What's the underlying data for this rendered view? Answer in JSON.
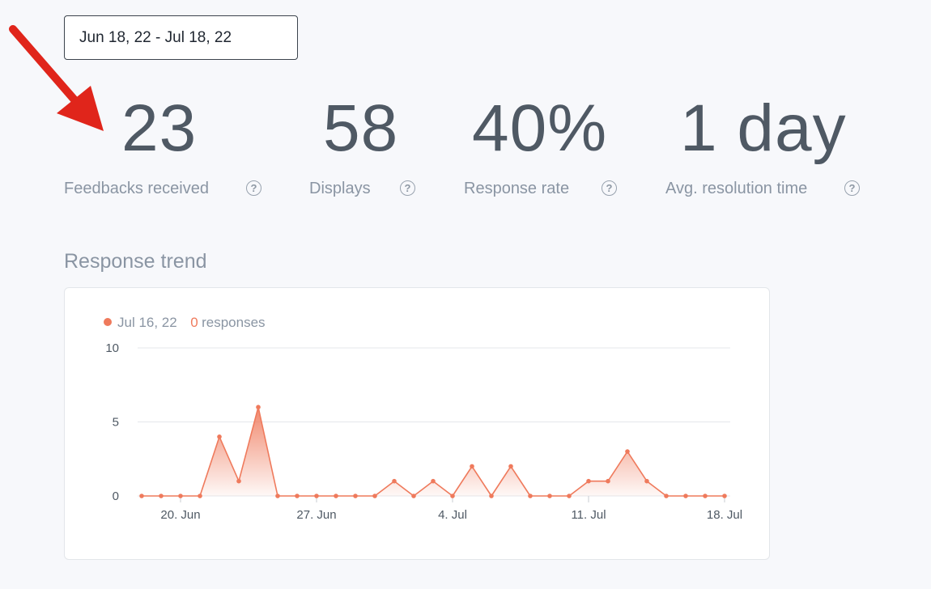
{
  "date_range": {
    "value": "Jun 18, 22 - Jul 18, 22"
  },
  "stats": [
    {
      "value": "23",
      "label": "Feedbacks received"
    },
    {
      "value": "58",
      "label": "Displays"
    },
    {
      "value": "40%",
      "label": "Response rate"
    },
    {
      "value": "1 day",
      "label": "Avg. resolution time"
    }
  ],
  "help_glyph": "?",
  "response_trend": {
    "title": "Response trend",
    "tooltip": {
      "date": "Jul 16, 22",
      "count": "0",
      "unit": " responses"
    }
  },
  "colors": {
    "accent": "#ef7a5c",
    "arrow": "#e0251b",
    "text_dark": "#4f5964",
    "text_muted": "#8a95a3"
  },
  "chart_data": {
    "type": "area",
    "x": [
      "Jun 18",
      "Jun 19",
      "Jun 20",
      "Jun 21",
      "Jun 22",
      "Jun 23",
      "Jun 24",
      "Jun 25",
      "Jun 26",
      "Jun 27",
      "Jun 28",
      "Jun 29",
      "Jun 30",
      "Jul 1",
      "Jul 2",
      "Jul 3",
      "Jul 4",
      "Jul 5",
      "Jul 6",
      "Jul 7",
      "Jul 8",
      "Jul 9",
      "Jul 10",
      "Jul 11",
      "Jul 12",
      "Jul 13",
      "Jul 14",
      "Jul 15",
      "Jul 16",
      "Jul 17",
      "Jul 18"
    ],
    "series": [
      {
        "values": [
          0,
          0,
          0,
          0,
          4,
          1,
          6,
          0,
          0,
          0,
          0,
          0,
          0,
          1,
          0,
          1,
          0,
          2,
          0,
          2,
          0,
          0,
          0,
          1,
          1,
          3,
          1,
          0,
          0,
          0,
          0
        ]
      }
    ],
    "x_ticks": [
      {
        "label": "20. Jun",
        "index": 2
      },
      {
        "label": "27. Jun",
        "index": 9
      },
      {
        "label": "4. Jul",
        "index": 16
      },
      {
        "label": "11. Jul",
        "index": 23
      },
      {
        "label": "18. Jul",
        "index": 30
      }
    ],
    "y_ticks": [
      0,
      5,
      10
    ],
    "ylim": [
      0,
      10
    ],
    "grid": true
  }
}
